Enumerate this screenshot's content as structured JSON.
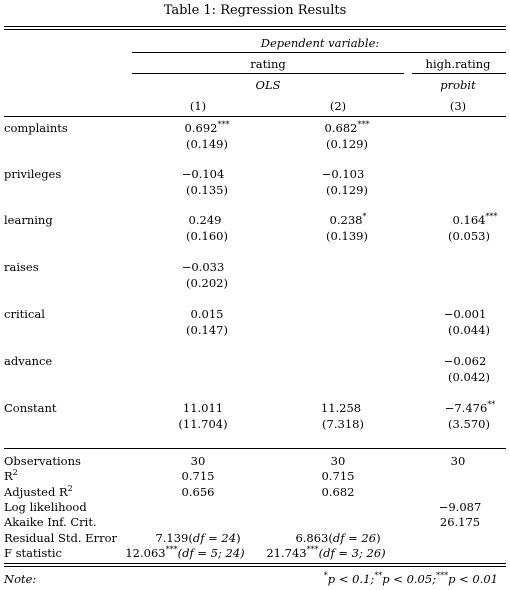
{
  "title": "Table 1: Regression Results",
  "dependent_variable": "Dependent variable:",
  "dep_rating": "rating",
  "dep_high_rating": "high.rating",
  "model_ols": "OLS",
  "model_probit": "probit",
  "col_numbers": [
    "(1)",
    "(2)",
    "(3)"
  ],
  "coefficients": [
    {
      "label": "complaints",
      "estimates": [
        "0.692",
        "0.682",
        ""
      ],
      "stars": [
        "***",
        "***",
        ""
      ],
      "se": [
        "(0.149)",
        "(0.129)",
        ""
      ]
    },
    {
      "label": "privileges",
      "estimates": [
        "−0.104",
        "−0.103",
        ""
      ],
      "stars": [
        "",
        "",
        ""
      ],
      "se": [
        "(0.135)",
        "(0.129)",
        ""
      ]
    },
    {
      "label": "learning",
      "estimates": [
        "0.249",
        "0.238",
        "0.164"
      ],
      "stars": [
        "",
        "*",
        "***"
      ],
      "se": [
        "(0.160)",
        "(0.139)",
        "(0.053)"
      ]
    },
    {
      "label": "raises",
      "estimates": [
        "−0.033",
        "",
        ""
      ],
      "stars": [
        "",
        "",
        ""
      ],
      "se": [
        "(0.202)",
        "",
        ""
      ]
    },
    {
      "label": "critical",
      "estimates": [
        "0.015",
        "",
        "−0.001"
      ],
      "stars": [
        "",
        "",
        ""
      ],
      "se": [
        "(0.147)",
        "",
        "(0.044)"
      ]
    },
    {
      "label": "advance",
      "estimates": [
        "",
        "",
        "−0.062"
      ],
      "stars": [
        "",
        "",
        ""
      ],
      "se": [
        "",
        "",
        "(0.042)"
      ]
    },
    {
      "label": "Constant",
      "estimates": [
        "11.011",
        "11.258",
        "−7.476"
      ],
      "stars": [
        "",
        "",
        "**"
      ],
      "se": [
        "(11.704)",
        "(7.318)",
        "(3.570)"
      ]
    }
  ],
  "stats": [
    {
      "label": "Observations",
      "values": [
        "30",
        "30",
        "30"
      ]
    },
    {
      "label": "R",
      "label_sup": "2",
      "values": [
        "0.715",
        "0.715",
        ""
      ]
    },
    {
      "label": "Adjusted R",
      "label_sup": "2",
      "values": [
        "0.656",
        "0.682",
        ""
      ]
    },
    {
      "label": "Log likelihood",
      "values": [
        "",
        "",
        "−9.087"
      ]
    },
    {
      "label": "Akaike Inf. Crit.",
      "values": [
        "",
        "",
        "26.175"
      ]
    },
    {
      "label": "Residual Std. Error",
      "values": [
        "7.139(",
        "6.863(",
        ""
      ],
      "df": [
        "df = 24",
        "df = 26",
        ""
      ],
      "after": [
        ")",
        ")",
        ""
      ]
    },
    {
      "label": "F statistic",
      "values": [
        "12.063",
        "21.743",
        ""
      ],
      "stars": [
        "***",
        "***",
        ""
      ],
      "df": [
        "(df = 5; 24)",
        "(df = 3; 26)",
        ""
      ]
    }
  ],
  "note_label": "Note:",
  "note_text": {
    "p1_sup": "*",
    "p1": "p < 0.1;",
    "p2_sup": "**",
    "p2": "p < 0.05;",
    "p3_sup": "***",
    "p3": "p < 0.01"
  }
}
